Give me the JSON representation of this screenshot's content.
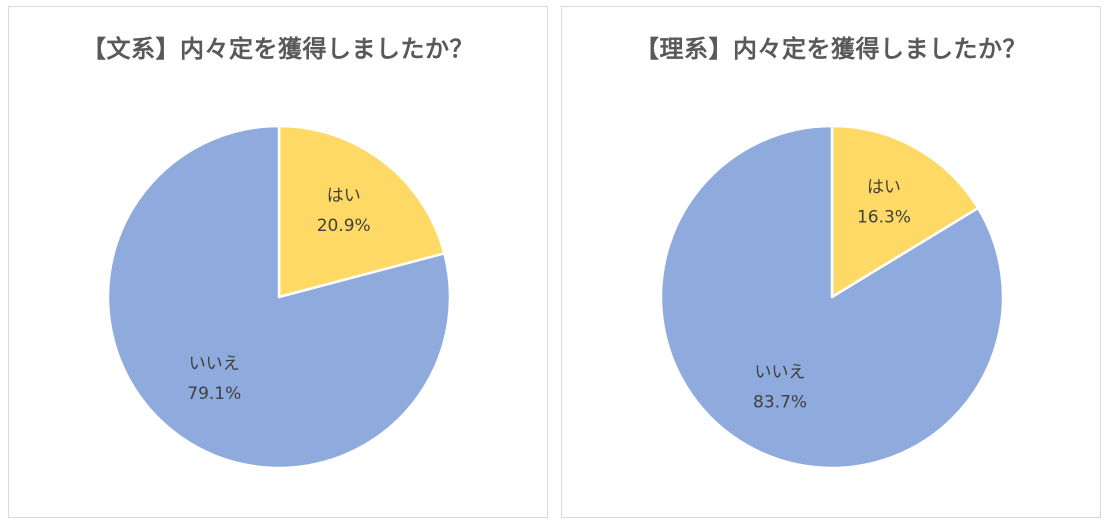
{
  "chart_data": [
    {
      "type": "pie",
      "title": "【文系】内々定を獲得しましたか？",
      "slices": [
        {
          "label": "はい",
          "value": 20.9,
          "display": "20.9%",
          "color": "#FFD966"
        },
        {
          "label": "いいえ",
          "value": 79.1,
          "display": "79.1%",
          "color": "#8FAADC"
        }
      ]
    },
    {
      "type": "pie",
      "title": "【理系】内々定を獲得しましたか？",
      "slices": [
        {
          "label": "はい",
          "value": 16.3,
          "display": "16.3%",
          "color": "#FFD966"
        },
        {
          "label": "いいえ",
          "value": 83.7,
          "display": "83.7%",
          "color": "#8FAADC"
        }
      ]
    }
  ]
}
